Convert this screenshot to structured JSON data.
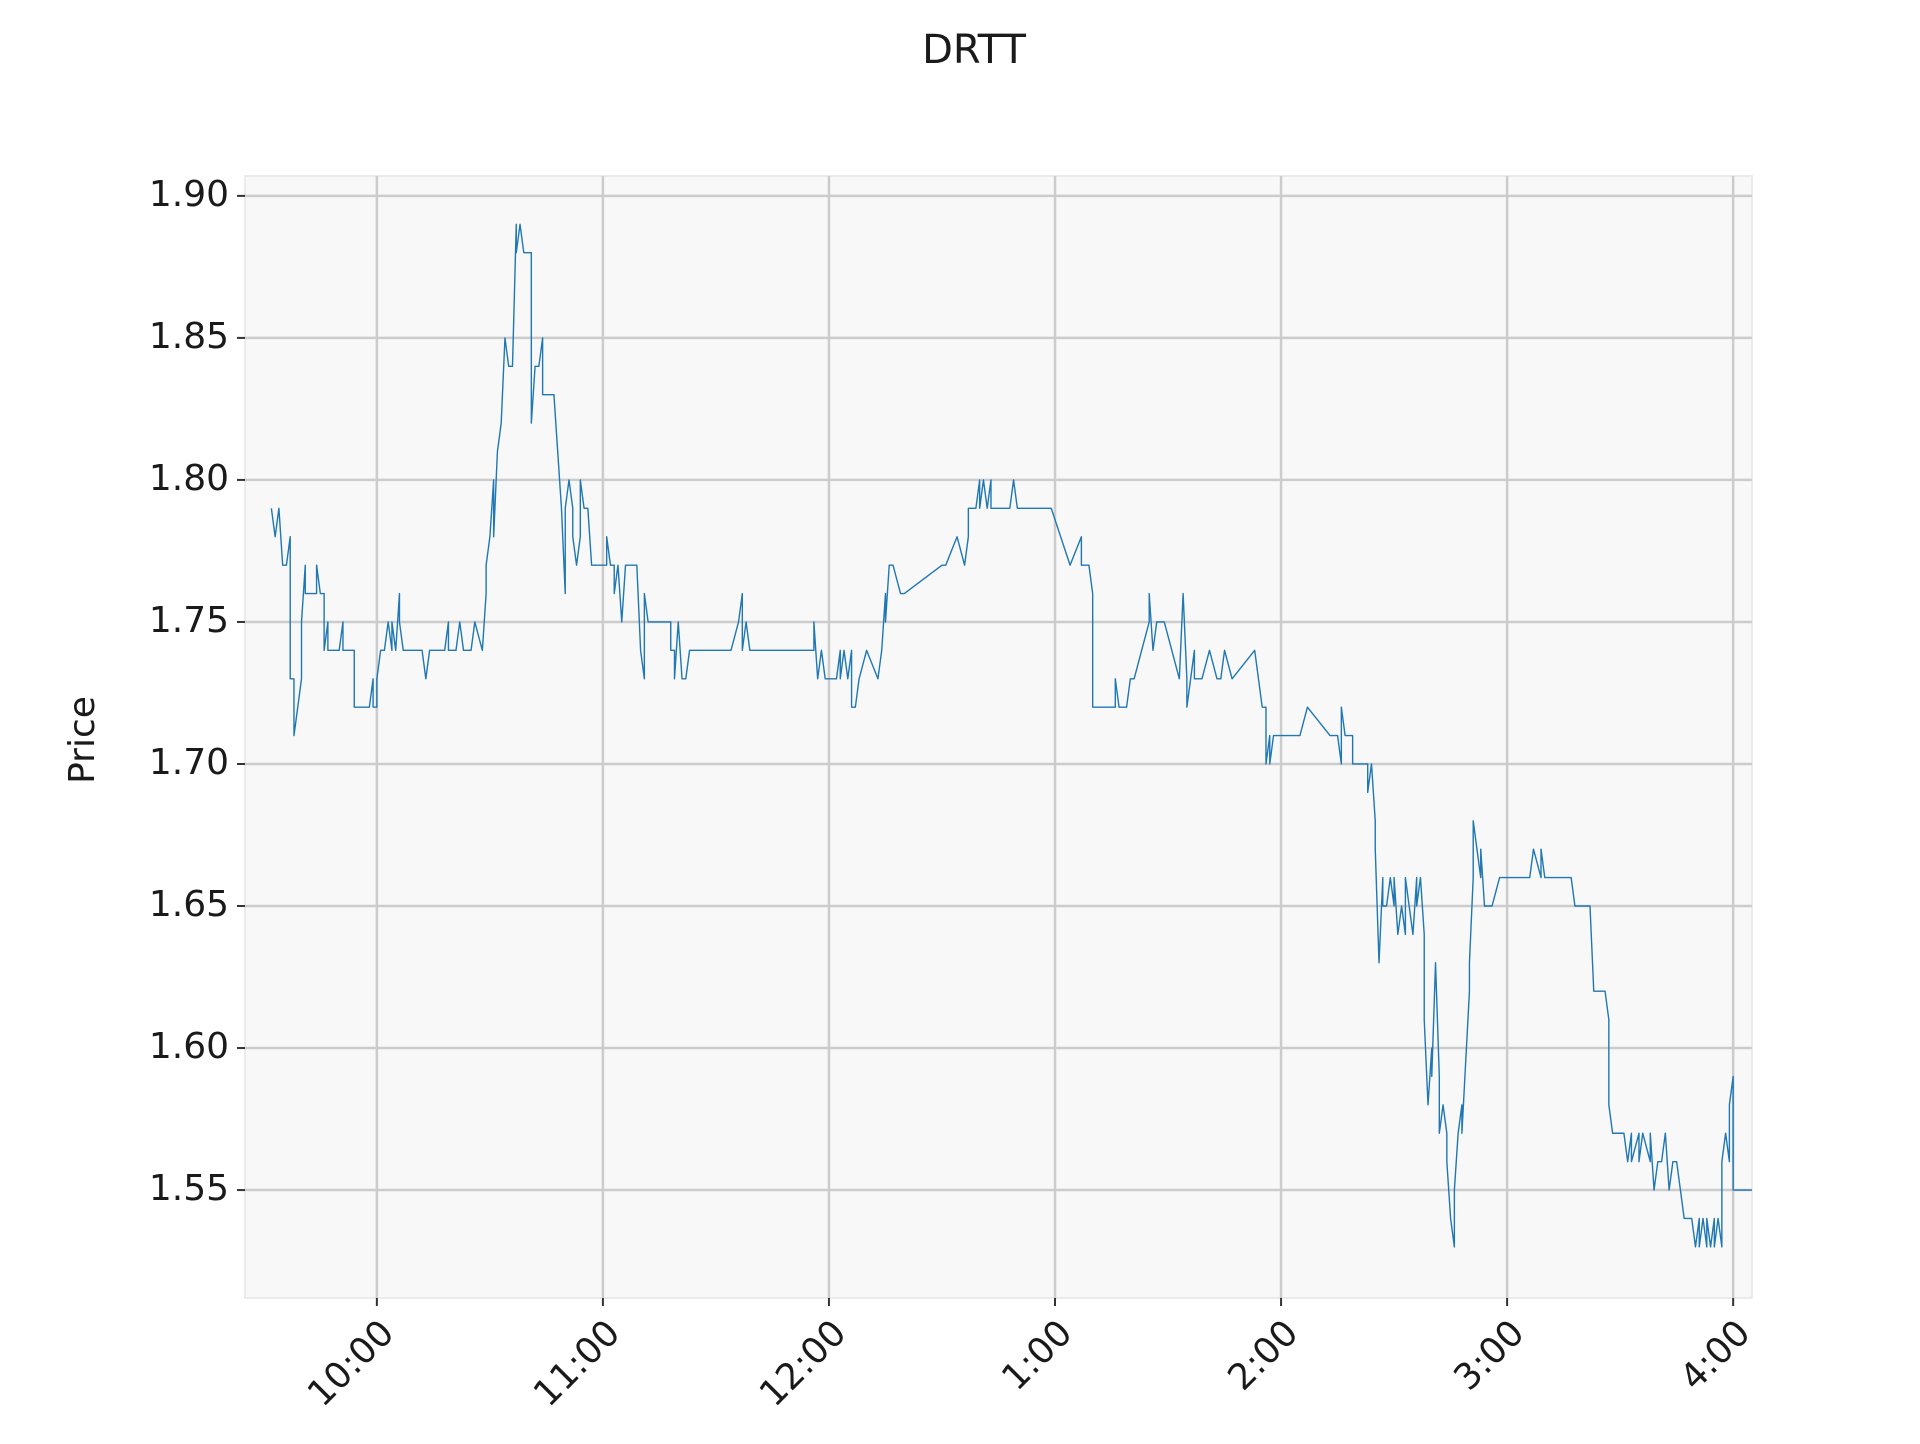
{
  "chart_data": {
    "type": "line",
    "title": "DRTT",
    "y_label": "Price",
    "color": "#1f77b4",
    "grid": true,
    "xlim": [
      565,
      965
    ],
    "xticks": [
      {
        "value": 600,
        "label": "10:00"
      },
      {
        "value": 660,
        "label": "11:00"
      },
      {
        "value": 720,
        "label": "12:00"
      },
      {
        "value": 780,
        "label": "1:00"
      },
      {
        "value": 840,
        "label": "2:00"
      },
      {
        "value": 900,
        "label": "3:00"
      },
      {
        "value": 960,
        "label": "4:00"
      }
    ],
    "ylim": [
      1.512,
      1.907
    ],
    "yticks": [
      1.55,
      {
        "value": 1.6,
        "label": "1.60"
      },
      1.65,
      {
        "value": 1.7,
        "label": "1.70"
      },
      1.75,
      {
        "value": 1.8,
        "label": "1.80"
      },
      1.85,
      {
        "value": 1.9,
        "label": "1.90"
      }
    ],
    "x": [
      572,
      573,
      574,
      575,
      576,
      577,
      577,
      578,
      578,
      579,
      580,
      580,
      581,
      581,
      584,
      584,
      585,
      586,
      586,
      587,
      587,
      590,
      591,
      591,
      594,
      594,
      598,
      599,
      599,
      600,
      600,
      601,
      602,
      603,
      604,
      604,
      605,
      606,
      606,
      607,
      612,
      613,
      614,
      618,
      619,
      619,
      621,
      622,
      623,
      625,
      626,
      628,
      629,
      629,
      630,
      631,
      631,
      632,
      633,
      633,
      634,
      635,
      636,
      637,
      637,
      638,
      639,
      641,
      641,
      641,
      642,
      643,
      644,
      644,
      647,
      648,
      648,
      649,
      650,
      650,
      651,
      652,
      652,
      653,
      654,
      654,
      655,
      656,
      657,
      661,
      661,
      662,
      663,
      663,
      664,
      665,
      666,
      669,
      670,
      671,
      671,
      672,
      678,
      678,
      679,
      679,
      680,
      681,
      682,
      683,
      694,
      696,
      697,
      697,
      698,
      699,
      716,
      716,
      717,
      718,
      719,
      722,
      723,
      723,
      724,
      725,
      726,
      726,
      727,
      728,
      730,
      733,
      734,
      735,
      735,
      736,
      737,
      739,
      740,
      750,
      751,
      754,
      756,
      757,
      757,
      759,
      760,
      760,
      761,
      762,
      763,
      763,
      768,
      769,
      770,
      779,
      784,
      787,
      787,
      789,
      790,
      790,
      796,
      796,
      797,
      799,
      800,
      801,
      803,
      805,
      805,
      806,
      807,
      809,
      811,
      813,
      814,
      815,
      815,
      816,
      817,
      817,
      819,
      821,
      823,
      824,
      825,
      827,
      833,
      834,
      835,
      836,
      836,
      837,
      837,
      838,
      845,
      847,
      853,
      855,
      856,
      856,
      857,
      859,
      859,
      863,
      863,
      864,
      865,
      865,
      866,
      867,
      867,
      868,
      869,
      870,
      870,
      871,
      872,
      873,
      873,
      874,
      875,
      876,
      876,
      877,
      878,
      878,
      879,
      880,
      880,
      881,
      882,
      882,
      883,
      884,
      884,
      885,
      886,
      886,
      887,
      888,
      888,
      890,
      890,
      891,
      891,
      893,
      893,
      894,
      896,
      898,
      906,
      907,
      909,
      909,
      910,
      917,
      918,
      922,
      923,
      926,
      927,
      927,
      928,
      931,
      932,
      933,
      933,
      935,
      935,
      936,
      938,
      938,
      939,
      940,
      941,
      942,
      943,
      944,
      945,
      947,
      949,
      950,
      951,
      951,
      952,
      953,
      953,
      954,
      955,
      955,
      956,
      957,
      957,
      958,
      959,
      959,
      960,
      960,
      965
    ],
    "values": [
      1.79,
      1.78,
      1.79,
      1.77,
      1.77,
      1.78,
      1.73,
      1.73,
      1.71,
      1.72,
      1.73,
      1.75,
      1.77,
      1.76,
      1.76,
      1.77,
      1.76,
      1.76,
      1.74,
      1.75,
      1.74,
      1.74,
      1.75,
      1.74,
      1.74,
      1.72,
      1.72,
      1.73,
      1.72,
      1.72,
      1.73,
      1.74,
      1.74,
      1.75,
      1.74,
      1.75,
      1.74,
      1.76,
      1.75,
      1.74,
      1.74,
      1.73,
      1.74,
      1.74,
      1.75,
      1.74,
      1.74,
      1.75,
      1.74,
      1.74,
      1.75,
      1.74,
      1.76,
      1.77,
      1.78,
      1.8,
      1.78,
      1.81,
      1.82,
      1.82,
      1.85,
      1.84,
      1.84,
      1.89,
      1.88,
      1.89,
      1.88,
      1.88,
      1.84,
      1.82,
      1.84,
      1.84,
      1.85,
      1.83,
      1.83,
      1.81,
      1.81,
      1.79,
      1.76,
      1.79,
      1.8,
      1.79,
      1.78,
      1.77,
      1.78,
      1.8,
      1.79,
      1.79,
      1.77,
      1.77,
      1.78,
      1.77,
      1.77,
      1.76,
      1.77,
      1.75,
      1.77,
      1.77,
      1.74,
      1.73,
      1.76,
      1.75,
      1.75,
      1.74,
      1.74,
      1.73,
      1.75,
      1.73,
      1.73,
      1.74,
      1.74,
      1.75,
      1.76,
      1.74,
      1.75,
      1.74,
      1.74,
      1.75,
      1.73,
      1.74,
      1.73,
      1.73,
      1.74,
      1.73,
      1.74,
      1.73,
      1.74,
      1.72,
      1.72,
      1.73,
      1.74,
      1.73,
      1.74,
      1.76,
      1.75,
      1.77,
      1.77,
      1.76,
      1.76,
      1.77,
      1.77,
      1.78,
      1.77,
      1.78,
      1.79,
      1.79,
      1.8,
      1.79,
      1.8,
      1.79,
      1.8,
      1.79,
      1.79,
      1.8,
      1.79,
      1.79,
      1.77,
      1.78,
      1.77,
      1.77,
      1.76,
      1.72,
      1.72,
      1.73,
      1.72,
      1.72,
      1.73,
      1.73,
      1.74,
      1.75,
      1.76,
      1.74,
      1.75,
      1.75,
      1.74,
      1.73,
      1.76,
      1.73,
      1.72,
      1.73,
      1.74,
      1.73,
      1.73,
      1.74,
      1.73,
      1.73,
      1.74,
      1.73,
      1.74,
      1.73,
      1.72,
      1.72,
      1.7,
      1.71,
      1.7,
      1.71,
      1.71,
      1.72,
      1.71,
      1.71,
      1.7,
      1.72,
      1.71,
      1.71,
      1.7,
      1.7,
      1.69,
      1.7,
      1.68,
      1.67,
      1.63,
      1.66,
      1.65,
      1.65,
      1.66,
      1.65,
      1.66,
      1.64,
      1.65,
      1.64,
      1.66,
      1.65,
      1.64,
      1.66,
      1.65,
      1.66,
      1.64,
      1.61,
      1.58,
      1.6,
      1.59,
      1.63,
      1.59,
      1.57,
      1.58,
      1.57,
      1.56,
      1.54,
      1.53,
      1.55,
      1.57,
      1.58,
      1.57,
      1.62,
      1.63,
      1.66,
      1.68,
      1.66,
      1.67,
      1.65,
      1.65,
      1.66,
      1.66,
      1.67,
      1.66,
      1.67,
      1.66,
      1.66,
      1.65,
      1.65,
      1.62,
      1.62,
      1.61,
      1.58,
      1.57,
      1.57,
      1.56,
      1.57,
      1.56,
      1.57,
      1.56,
      1.57,
      1.56,
      1.57,
      1.55,
      1.56,
      1.56,
      1.57,
      1.55,
      1.56,
      1.56,
      1.54,
      1.54,
      1.53,
      1.54,
      1.53,
      1.54,
      1.53,
      1.54,
      1.53,
      1.54,
      1.53,
      1.54,
      1.53,
      1.56,
      1.57,
      1.56,
      1.58,
      1.59,
      1.55,
      1.55
    ]
  }
}
